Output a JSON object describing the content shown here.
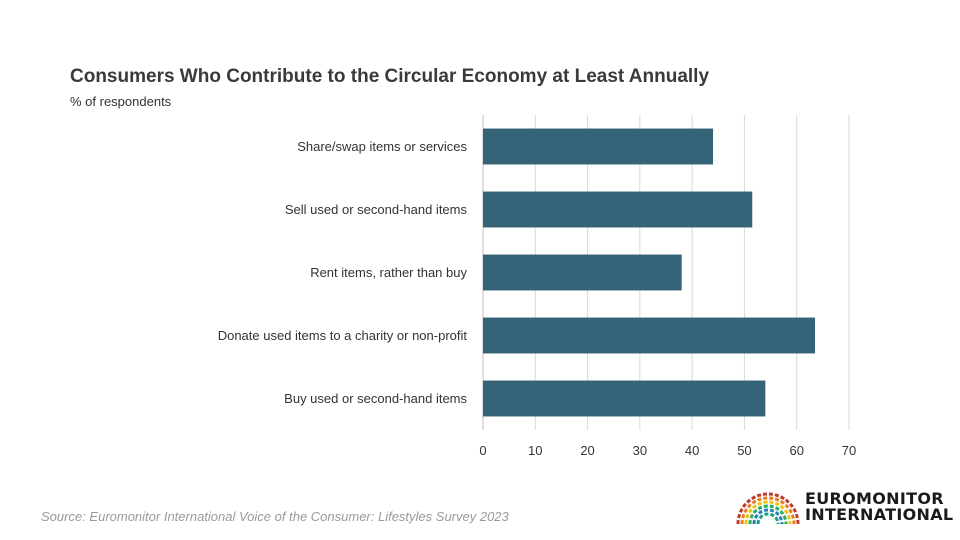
{
  "header": {
    "title": "Consumers Who Contribute to the Circular Economy at Least Annually",
    "subtitle": "% of respondents"
  },
  "footer": {
    "source": "Source: Euromonitor International Voice of the Consumer: Lifestyles Survey 2023"
  },
  "brand": {
    "line1": "EUROMONITOR",
    "line2": "INTERNATIONAL",
    "logo_icon": "rainbow-arcs-icon",
    "logo_colors": [
      "#c0392b",
      "#e67e22",
      "#f1c40f",
      "#27ae60",
      "#2980b9",
      "#16a085"
    ]
  },
  "colors": {
    "bar": "#356479",
    "grid": "#d9d9d9"
  },
  "chart_data": {
    "type": "bar",
    "orientation": "horizontal",
    "categories": [
      "Share/swap items or services",
      "Sell used or second-hand items",
      "Rent items, rather than buy",
      "Donate used items to a charity or non-profit",
      "Buy used or second-hand items"
    ],
    "values": [
      44,
      51.5,
      38,
      63.5,
      54
    ],
    "xlim": [
      0,
      70
    ],
    "xticks": [
      0,
      10,
      20,
      30,
      40,
      50,
      60,
      70
    ],
    "grid": true,
    "title": "Consumers Who Contribute to the Circular Economy at Least Annually",
    "subtitle": "% of respondents"
  }
}
